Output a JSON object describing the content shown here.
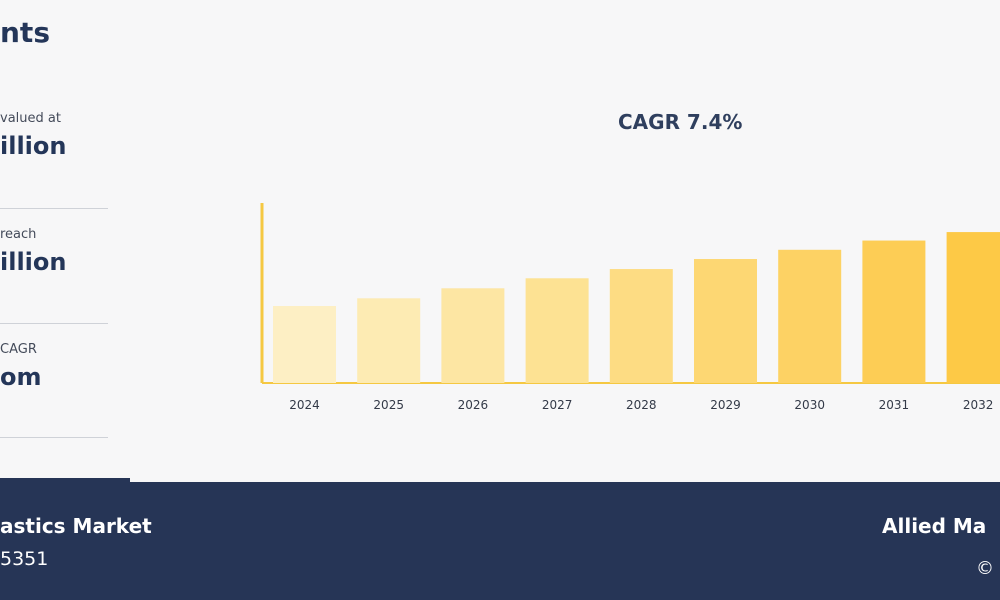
{
  "header": {
    "title": "nts"
  },
  "stats": [
    {
      "label": "valued at",
      "value": "illion"
    },
    {
      "label": "reach",
      "value": "illion"
    },
    {
      "label": "CAGR",
      "value": "om"
    }
  ],
  "chart_data": {
    "type": "bar",
    "title": "CAGR 7.4%",
    "xlabel": "",
    "ylabel": "",
    "categories": [
      "2024",
      "2025",
      "2026",
      "2027",
      "2028",
      "2029",
      "2030",
      "2031",
      "2032"
    ],
    "values": [
      1.0,
      1.1,
      1.23,
      1.36,
      1.48,
      1.61,
      1.73,
      1.85,
      1.96
    ],
    "ylim": [
      0,
      2.5
    ],
    "grid": false,
    "colors": [
      "#fdefc4",
      "#fdebb3",
      "#fde6a3",
      "#fde293",
      "#fddc83",
      "#fdd773",
      "#fdd264",
      "#fdcd55",
      "#fdc946"
    ],
    "axis_color": "#f5c842"
  },
  "footer": {
    "title": "astics Market",
    "report_id": "5351",
    "brand": "Allied Ma",
    "copyright": "©"
  }
}
